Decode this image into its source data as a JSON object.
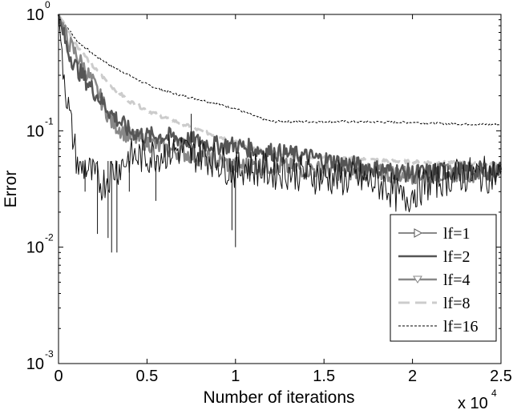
{
  "chart_data": {
    "type": "line",
    "title": "",
    "xlabel": "Number of iterations",
    "ylabel": "Error",
    "x_multiplier_label": "x 10",
    "x_multiplier_exp": "4",
    "xlim": [
      0,
      2.5
    ],
    "ylim": [
      0.001,
      1
    ],
    "yscale": "log",
    "grid": false,
    "legend_position": "lower-right",
    "x_ticks": [
      "0",
      "0.5",
      "1",
      "1.5",
      "2",
      "2.5"
    ],
    "y_ticks": [
      {
        "base": "10",
        "exp": "-3"
      },
      {
        "base": "10",
        "exp": "-2"
      },
      {
        "base": "10",
        "exp": "-1"
      },
      {
        "base": "10",
        "exp": "0"
      }
    ],
    "series": [
      {
        "name": "lf=1",
        "color": "#111111",
        "style": "solid",
        "x": [
          0,
          0.02,
          0.05,
          0.08,
          0.1,
          0.12,
          0.15,
          0.2,
          0.25,
          0.3,
          0.35,
          0.4,
          0.5,
          0.6,
          0.7,
          0.75,
          0.8,
          0.9,
          1.0,
          1.05,
          1.1,
          1.2,
          1.3,
          1.5,
          1.7,
          1.85,
          1.95,
          2.0,
          2.1,
          2.2,
          2.35,
          2.5
        ],
        "y": [
          1.0,
          0.45,
          0.18,
          0.09,
          0.06,
          0.045,
          0.05,
          0.04,
          0.035,
          0.045,
          0.05,
          0.06,
          0.06,
          0.065,
          0.07,
          0.06,
          0.065,
          0.055,
          0.045,
          0.05,
          0.048,
          0.045,
          0.045,
          0.04,
          0.038,
          0.034,
          0.025,
          0.03,
          0.036,
          0.04,
          0.042,
          0.042
        ],
        "spikes": [
          [
            0.15,
            0.03
          ],
          [
            0.22,
            0.013
          ],
          [
            0.28,
            0.012
          ],
          [
            0.3,
            0.009
          ],
          [
            0.33,
            0.009
          ],
          [
            0.4,
            0.03
          ],
          [
            0.55,
            0.025
          ],
          [
            0.75,
            0.14
          ],
          [
            0.98,
            0.014
          ],
          [
            1.0,
            0.01
          ]
        ]
      },
      {
        "name": "lf=2",
        "color": "#555555",
        "style": "solid",
        "marker": "triangle-right",
        "x": [
          0,
          0.05,
          0.1,
          0.2,
          0.3,
          0.4,
          0.5,
          0.6,
          0.7,
          0.8,
          0.9,
          1.0,
          1.1,
          1.2,
          1.4,
          1.6,
          1.8,
          2.0,
          2.2,
          2.5
        ],
        "y": [
          1.0,
          0.5,
          0.35,
          0.22,
          0.14,
          0.1,
          0.09,
          0.09,
          0.085,
          0.08,
          0.075,
          0.075,
          0.07,
          0.066,
          0.06,
          0.053,
          0.047,
          0.043,
          0.045,
          0.046
        ]
      },
      {
        "name": "lf=4",
        "color": "#888888",
        "style": "solid",
        "marker": "triangle-down",
        "x": [
          0,
          0.05,
          0.1,
          0.2,
          0.3,
          0.4,
          0.5,
          0.6,
          0.7,
          0.8,
          0.9,
          1.0,
          1.1,
          1.2,
          1.4,
          1.6,
          1.8,
          2.0,
          2.2,
          2.5
        ],
        "y": [
          1.0,
          0.6,
          0.45,
          0.25,
          0.12,
          0.09,
          0.08,
          0.07,
          0.065,
          0.06,
          0.055,
          0.05,
          0.05,
          0.05,
          0.047,
          0.045,
          0.043,
          0.042,
          0.043,
          0.044
        ]
      },
      {
        "name": "lf=8",
        "color": "#cccccc",
        "style": "dashed",
        "x": [
          0,
          0.1,
          0.2,
          0.3,
          0.4,
          0.5,
          0.6,
          0.7,
          0.8,
          0.9,
          1.0,
          1.1,
          1.2,
          1.4,
          1.6,
          1.8,
          2.0,
          2.2,
          2.5
        ],
        "y": [
          1.0,
          0.55,
          0.35,
          0.24,
          0.18,
          0.15,
          0.13,
          0.115,
          0.1,
          0.09,
          0.08,
          0.07,
          0.065,
          0.06,
          0.058,
          0.056,
          0.054,
          0.053,
          0.052
        ]
      },
      {
        "name": "lf=16",
        "color": "#000000",
        "style": "dotted",
        "x": [
          0,
          0.1,
          0.2,
          0.3,
          0.4,
          0.5,
          0.6,
          0.7,
          0.8,
          0.9,
          1.0,
          1.1,
          1.2,
          1.4,
          1.6,
          1.8,
          2.0,
          2.2,
          2.5
        ],
        "y": [
          1.0,
          0.6,
          0.45,
          0.36,
          0.3,
          0.25,
          0.22,
          0.2,
          0.185,
          0.17,
          0.155,
          0.135,
          0.12,
          0.12,
          0.12,
          0.119,
          0.118,
          0.115,
          0.113
        ]
      }
    ]
  }
}
